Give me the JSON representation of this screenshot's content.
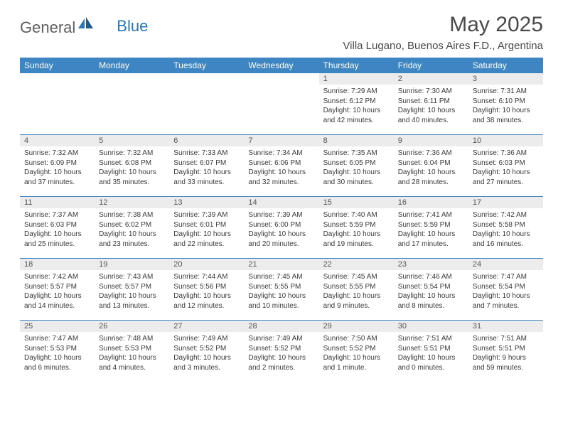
{
  "logo": {
    "text_gray": "General",
    "text_blue": "Blue"
  },
  "title": "May 2025",
  "location": "Villa Lugano, Buenos Aires F.D., Argentina",
  "colors": {
    "header_bar": "#3e86c3",
    "daynum_bg": "#ececec",
    "rule": "#3e86c3",
    "logo_gray": "#5f5f5f",
    "logo_blue": "#2a76b9"
  },
  "day_names": [
    "Sunday",
    "Monday",
    "Tuesday",
    "Wednesday",
    "Thursday",
    "Friday",
    "Saturday"
  ],
  "weeks": [
    [
      null,
      null,
      null,
      null,
      {
        "n": "1",
        "sr": "7:29 AM",
        "ss": "6:12 PM",
        "dl": "10 hours and 42 minutes."
      },
      {
        "n": "2",
        "sr": "7:30 AM",
        "ss": "6:11 PM",
        "dl": "10 hours and 40 minutes."
      },
      {
        "n": "3",
        "sr": "7:31 AM",
        "ss": "6:10 PM",
        "dl": "10 hours and 38 minutes."
      }
    ],
    [
      {
        "n": "4",
        "sr": "7:32 AM",
        "ss": "6:09 PM",
        "dl": "10 hours and 37 minutes."
      },
      {
        "n": "5",
        "sr": "7:32 AM",
        "ss": "6:08 PM",
        "dl": "10 hours and 35 minutes."
      },
      {
        "n": "6",
        "sr": "7:33 AM",
        "ss": "6:07 PM",
        "dl": "10 hours and 33 minutes."
      },
      {
        "n": "7",
        "sr": "7:34 AM",
        "ss": "6:06 PM",
        "dl": "10 hours and 32 minutes."
      },
      {
        "n": "8",
        "sr": "7:35 AM",
        "ss": "6:05 PM",
        "dl": "10 hours and 30 minutes."
      },
      {
        "n": "9",
        "sr": "7:36 AM",
        "ss": "6:04 PM",
        "dl": "10 hours and 28 minutes."
      },
      {
        "n": "10",
        "sr": "7:36 AM",
        "ss": "6:03 PM",
        "dl": "10 hours and 27 minutes."
      }
    ],
    [
      {
        "n": "11",
        "sr": "7:37 AM",
        "ss": "6:03 PM",
        "dl": "10 hours and 25 minutes."
      },
      {
        "n": "12",
        "sr": "7:38 AM",
        "ss": "6:02 PM",
        "dl": "10 hours and 23 minutes."
      },
      {
        "n": "13",
        "sr": "7:39 AM",
        "ss": "6:01 PM",
        "dl": "10 hours and 22 minutes."
      },
      {
        "n": "14",
        "sr": "7:39 AM",
        "ss": "6:00 PM",
        "dl": "10 hours and 20 minutes."
      },
      {
        "n": "15",
        "sr": "7:40 AM",
        "ss": "5:59 PM",
        "dl": "10 hours and 19 minutes."
      },
      {
        "n": "16",
        "sr": "7:41 AM",
        "ss": "5:59 PM",
        "dl": "10 hours and 17 minutes."
      },
      {
        "n": "17",
        "sr": "7:42 AM",
        "ss": "5:58 PM",
        "dl": "10 hours and 16 minutes."
      }
    ],
    [
      {
        "n": "18",
        "sr": "7:42 AM",
        "ss": "5:57 PM",
        "dl": "10 hours and 14 minutes."
      },
      {
        "n": "19",
        "sr": "7:43 AM",
        "ss": "5:57 PM",
        "dl": "10 hours and 13 minutes."
      },
      {
        "n": "20",
        "sr": "7:44 AM",
        "ss": "5:56 PM",
        "dl": "10 hours and 12 minutes."
      },
      {
        "n": "21",
        "sr": "7:45 AM",
        "ss": "5:55 PM",
        "dl": "10 hours and 10 minutes."
      },
      {
        "n": "22",
        "sr": "7:45 AM",
        "ss": "5:55 PM",
        "dl": "10 hours and 9 minutes."
      },
      {
        "n": "23",
        "sr": "7:46 AM",
        "ss": "5:54 PM",
        "dl": "10 hours and 8 minutes."
      },
      {
        "n": "24",
        "sr": "7:47 AM",
        "ss": "5:54 PM",
        "dl": "10 hours and 7 minutes."
      }
    ],
    [
      {
        "n": "25",
        "sr": "7:47 AM",
        "ss": "5:53 PM",
        "dl": "10 hours and 6 minutes."
      },
      {
        "n": "26",
        "sr": "7:48 AM",
        "ss": "5:53 PM",
        "dl": "10 hours and 4 minutes."
      },
      {
        "n": "27",
        "sr": "7:49 AM",
        "ss": "5:52 PM",
        "dl": "10 hours and 3 minutes."
      },
      {
        "n": "28",
        "sr": "7:49 AM",
        "ss": "5:52 PM",
        "dl": "10 hours and 2 minutes."
      },
      {
        "n": "29",
        "sr": "7:50 AM",
        "ss": "5:52 PM",
        "dl": "10 hours and 1 minute."
      },
      {
        "n": "30",
        "sr": "7:51 AM",
        "ss": "5:51 PM",
        "dl": "10 hours and 0 minutes."
      },
      {
        "n": "31",
        "sr": "7:51 AM",
        "ss": "5:51 PM",
        "dl": "9 hours and 59 minutes."
      }
    ]
  ],
  "labels": {
    "sunrise": "Sunrise:",
    "sunset": "Sunset:",
    "daylight": "Daylight:"
  }
}
